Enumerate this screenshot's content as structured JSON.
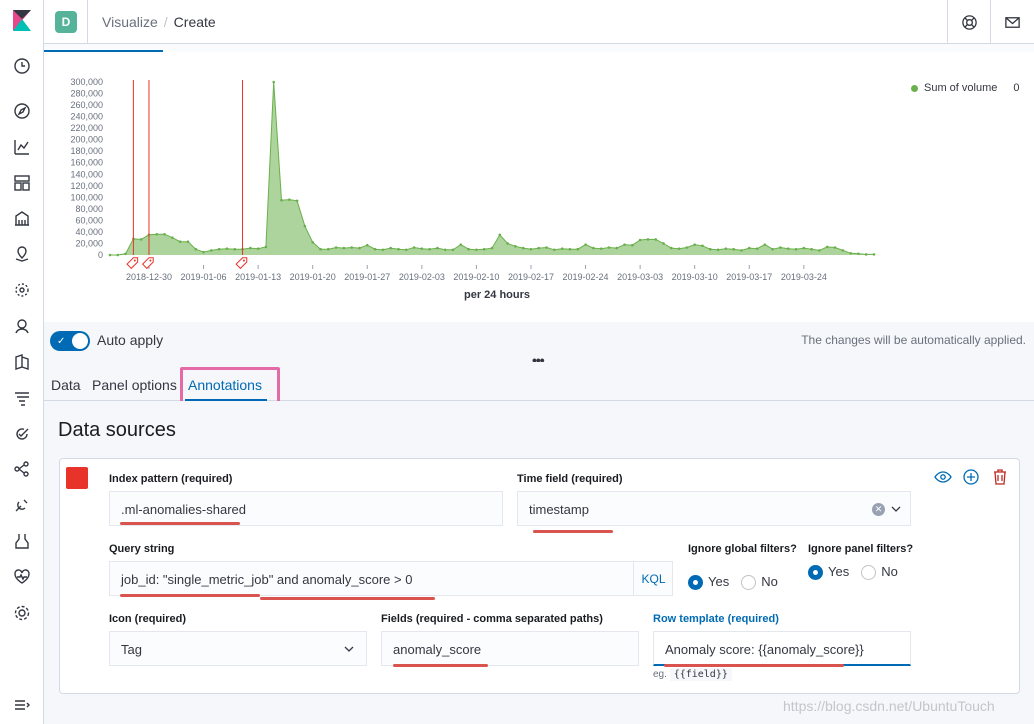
{
  "header": {
    "space_initial": "D",
    "breadcrumbs": [
      "Visualize",
      "Create"
    ]
  },
  "nav_icons": [
    "clock-icon",
    "compass-icon",
    "chart-icon",
    "dashboard-icon",
    "canvas-icon",
    "maps-icon",
    "ml-icon",
    "infra-icon",
    "logs-icon",
    "apm-icon",
    "uptime-icon",
    "graph-icon",
    "devtools-icon",
    "monitoring-icon",
    "heartbeat-icon",
    "gear-icon"
  ],
  "chart_data": {
    "type": "area",
    "xlabel": "per 24 hours",
    "ylabel": "",
    "ylim": [
      0,
      300000
    ],
    "yticks": [
      "0",
      "20,000",
      "40,000",
      "60,000",
      "80,000",
      "100,000",
      "120,000",
      "140,000",
      "160,000",
      "180,000",
      "200,000",
      "220,000",
      "240,000",
      "260,000",
      "280,000",
      "300,000"
    ],
    "xticks": [
      "2018-12-30",
      "2019-01-06",
      "2019-01-13",
      "2019-01-20",
      "2019-01-27",
      "2019-02-03",
      "2019-02-10",
      "2019-02-17",
      "2019-02-24",
      "2019-03-03",
      "2019-03-10",
      "2019-03-17",
      "2019-03-24"
    ],
    "series": [
      {
        "name": "Sum of volume",
        "color": "#6ab04c",
        "x_start": "2018-12-25",
        "values": [
          0,
          0,
          2000,
          28000,
          27000,
          35000,
          36000,
          36000,
          30000,
          23000,
          23000,
          10000,
          5000,
          8000,
          10000,
          11000,
          10000,
          10000,
          12000,
          11000,
          14000,
          300000,
          95000,
          96000,
          94000,
          50000,
          22000,
          10000,
          10000,
          13000,
          12000,
          13000,
          12000,
          17000,
          10000,
          9000,
          12000,
          10000,
          9000,
          13000,
          11000,
          10000,
          12000,
          9000,
          9000,
          18000,
          10000,
          9000,
          10000,
          12000,
          35000,
          20000,
          15000,
          12000,
          10000,
          12000,
          13000,
          9000,
          11000,
          10000,
          10000,
          18000,
          12000,
          11000,
          13000,
          12000,
          18000,
          17000,
          26000,
          27000,
          27000,
          20000,
          12000,
          11000,
          13000,
          18000,
          16000,
          10000,
          9000,
          11000,
          10000,
          8000,
          12000,
          11000,
          18000,
          10000,
          13000,
          11000,
          10000,
          12000,
          10000,
          8000,
          14000,
          13000,
          8000,
          3000,
          2000,
          1000,
          1000
        ]
      }
    ],
    "annotation_lines": [
      "2018-12-28",
      "2018-12-30",
      "2019-01-11"
    ],
    "grid": false,
    "legend_position": "top-right",
    "legend_value": "0"
  },
  "autoapply": {
    "label": "Auto apply",
    "note": "The changes will be automatically applied.",
    "more": "•••"
  },
  "tabs": [
    {
      "label": "Data"
    },
    {
      "label": "Panel options"
    },
    {
      "label": "Annotations"
    }
  ],
  "data_sources": {
    "title": "Data sources",
    "index_pattern_label": "Index pattern (required)",
    "index_pattern_value": ".ml-anomalies-shared",
    "time_field_label": "Time field (required)",
    "time_field_value": "timestamp",
    "query_string_label": "Query string",
    "query_string_value": "job_id: \"single_metric_job\" and anomaly_score > 0",
    "kql": "KQL",
    "ignore_global_label": "Ignore global filters?",
    "ignore_panel_label": "Ignore panel filters?",
    "yes": "Yes",
    "no": "No",
    "icon_label": "Icon (required)",
    "icon_value": "Tag",
    "fields_label": "Fields (required - comma separated paths)",
    "fields_value": "anomaly_score",
    "row_template_label": "Row template (required)",
    "row_template_value": "Anomaly score: {{anomaly_score}}",
    "hint_prefix": "eg.",
    "hint_code": "{{field}}",
    "swatch_color": "#e7332a"
  },
  "watermark": "https://blog.csdn.net/UbuntuTouch"
}
